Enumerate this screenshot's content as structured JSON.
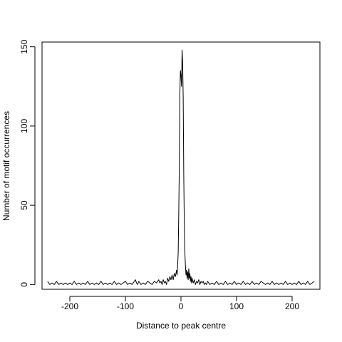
{
  "chart_data": {
    "type": "line",
    "title": "",
    "xlabel": "Distance to peak centre",
    "ylabel": "Number of motif occurrences",
    "xlim": [
      -250,
      250
    ],
    "ylim": [
      -3,
      153
    ],
    "xticks": [
      -200,
      -100,
      0,
      100,
      200
    ],
    "xtick_labels": [
      "-200",
      "-100",
      "0",
      "100",
      "200"
    ],
    "yticks": [
      0,
      50,
      100,
      150
    ],
    "ytick_labels": [
      "0",
      "50",
      "100",
      "150"
    ],
    "grid": false,
    "legend": "none",
    "series": [
      {
        "color": "#000000",
        "points": [
          [
            -240,
            2
          ],
          [
            -236,
            0
          ],
          [
            -232,
            1
          ],
          [
            -228,
            0
          ],
          [
            -224,
            2
          ],
          [
            -220,
            0
          ],
          [
            -216,
            1
          ],
          [
            -212,
            0
          ],
          [
            -208,
            1
          ],
          [
            -204,
            0
          ],
          [
            -200,
            1
          ],
          [
            -196,
            0
          ],
          [
            -192,
            2
          ],
          [
            -188,
            0
          ],
          [
            -184,
            1
          ],
          [
            -180,
            0
          ],
          [
            -176,
            1
          ],
          [
            -172,
            0
          ],
          [
            -168,
            2
          ],
          [
            -164,
            0
          ],
          [
            -160,
            1
          ],
          [
            -156,
            0
          ],
          [
            -152,
            1
          ],
          [
            -148,
            0
          ],
          [
            -144,
            2
          ],
          [
            -140,
            0
          ],
          [
            -136,
            1
          ],
          [
            -132,
            0
          ],
          [
            -128,
            1
          ],
          [
            -124,
            0
          ],
          [
            -120,
            2
          ],
          [
            -116,
            0
          ],
          [
            -112,
            1
          ],
          [
            -108,
            0
          ],
          [
            -104,
            1
          ],
          [
            -100,
            2
          ],
          [
            -96,
            0
          ],
          [
            -92,
            1
          ],
          [
            -88,
            0
          ],
          [
            -84,
            2
          ],
          [
            -82,
            3
          ],
          [
            -80,
            1
          ],
          [
            -78,
            0
          ],
          [
            -76,
            2
          ],
          [
            -72,
            0
          ],
          [
            -68,
            1
          ],
          [
            -64,
            0
          ],
          [
            -60,
            2
          ],
          [
            -56,
            1
          ],
          [
            -52,
            0
          ],
          [
            -48,
            2
          ],
          [
            -44,
            1
          ],
          [
            -40,
            3
          ],
          [
            -38,
            1
          ],
          [
            -36,
            2
          ],
          [
            -34,
            0
          ],
          [
            -32,
            3
          ],
          [
            -30,
            1
          ],
          [
            -28,
            2
          ],
          [
            -26,
            0
          ],
          [
            -24,
            4
          ],
          [
            -22,
            2
          ],
          [
            -20,
            5
          ],
          [
            -18,
            3
          ],
          [
            -16,
            6
          ],
          [
            -14,
            3
          ],
          [
            -12,
            7
          ],
          [
            -10,
            5
          ],
          [
            -8,
            9
          ],
          [
            -7,
            6
          ],
          [
            -6,
            12
          ],
          [
            -5,
            20
          ],
          [
            -4,
            45
          ],
          [
            -3,
            75
          ],
          [
            -2,
            120
          ],
          [
            -1,
            135
          ],
          [
            0,
            132
          ],
          [
            1,
            125
          ],
          [
            2,
            148
          ],
          [
            3,
            140
          ],
          [
            4,
            118
          ],
          [
            5,
            69
          ],
          [
            6,
            38
          ],
          [
            7,
            20
          ],
          [
            8,
            12
          ],
          [
            9,
            6
          ],
          [
            10,
            9
          ],
          [
            11,
            4
          ],
          [
            12,
            8
          ],
          [
            13,
            3
          ],
          [
            14,
            10
          ],
          [
            15,
            4
          ],
          [
            16,
            7
          ],
          [
            17,
            2
          ],
          [
            18,
            5
          ],
          [
            19,
            1
          ],
          [
            20,
            4
          ],
          [
            22,
            1
          ],
          [
            24,
            3
          ],
          [
            26,
            0
          ],
          [
            28,
            2
          ],
          [
            30,
            1
          ],
          [
            32,
            3
          ],
          [
            34,
            0
          ],
          [
            36,
            2
          ],
          [
            38,
            1
          ],
          [
            40,
            2
          ],
          [
            42,
            0
          ],
          [
            44,
            1
          ],
          [
            46,
            0
          ],
          [
            48,
            2
          ],
          [
            52,
            0
          ],
          [
            56,
            1
          ],
          [
            60,
            0
          ],
          [
            64,
            2
          ],
          [
            68,
            0
          ],
          [
            72,
            1
          ],
          [
            76,
            0
          ],
          [
            80,
            2
          ],
          [
            84,
            0
          ],
          [
            88,
            1
          ],
          [
            92,
            0
          ],
          [
            96,
            2
          ],
          [
            100,
            0
          ],
          [
            104,
            1
          ],
          [
            108,
            0
          ],
          [
            112,
            2
          ],
          [
            116,
            0
          ],
          [
            120,
            1
          ],
          [
            124,
            0
          ],
          [
            128,
            2
          ],
          [
            132,
            0
          ],
          [
            136,
            1
          ],
          [
            140,
            0
          ],
          [
            144,
            2
          ],
          [
            148,
            1
          ],
          [
            152,
            0
          ],
          [
            156,
            1
          ],
          [
            160,
            0
          ],
          [
            164,
            2
          ],
          [
            168,
            0
          ],
          [
            172,
            1
          ],
          [
            176,
            0
          ],
          [
            180,
            1
          ],
          [
            184,
            0
          ],
          [
            188,
            2
          ],
          [
            192,
            0
          ],
          [
            196,
            1
          ],
          [
            200,
            0
          ],
          [
            204,
            1
          ],
          [
            208,
            0
          ],
          [
            212,
            2
          ],
          [
            216,
            0
          ],
          [
            220,
            1
          ],
          [
            224,
            0
          ],
          [
            228,
            2
          ],
          [
            232,
            0
          ],
          [
            236,
            1
          ],
          [
            240,
            2
          ]
        ]
      }
    ]
  }
}
